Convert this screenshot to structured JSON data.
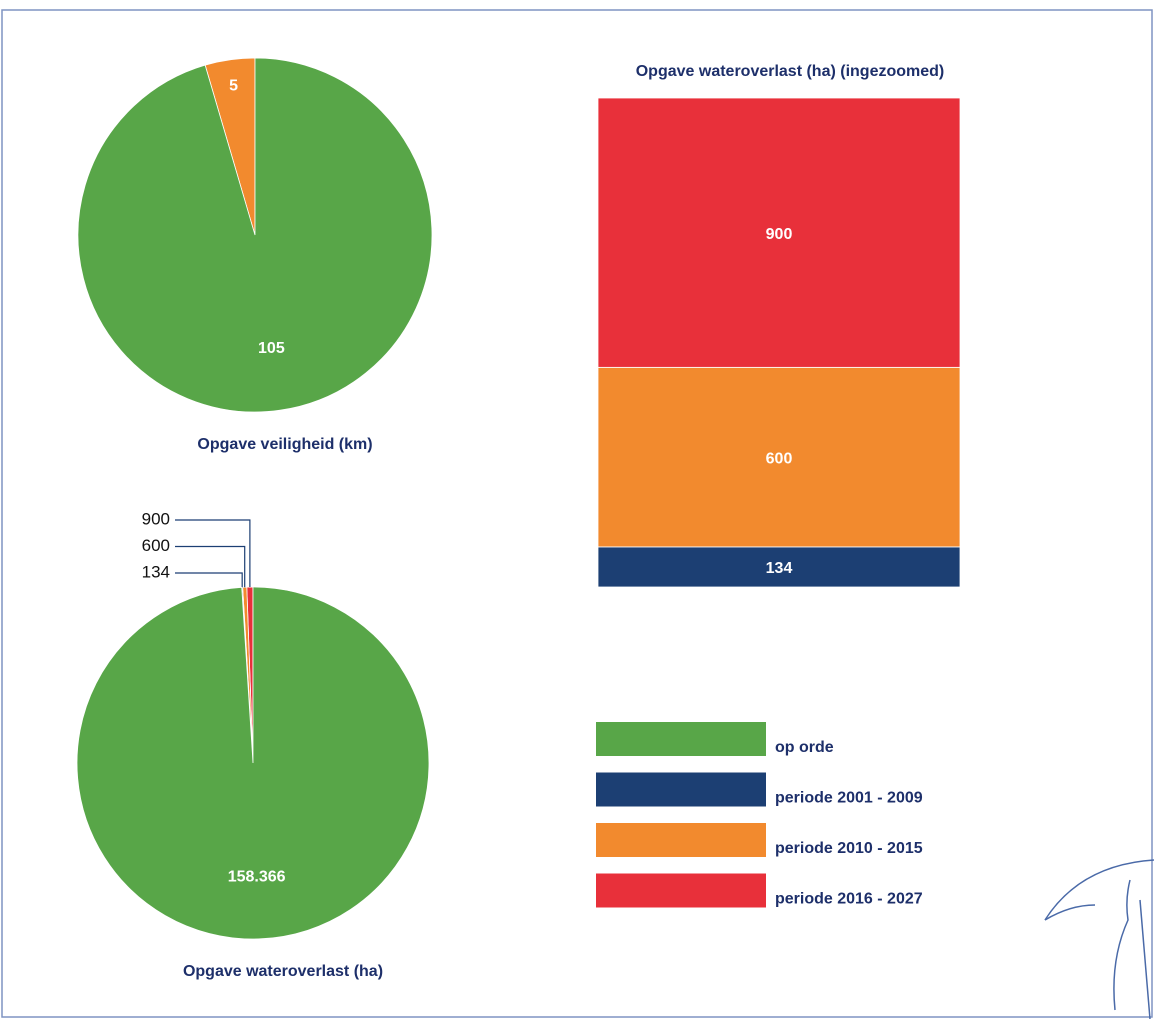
{
  "chart_data": [
    {
      "type": "pie",
      "title": "Opgave veiligheid (km)",
      "values": [
        105,
        5
      ],
      "colors": [
        "#58a648",
        "#f28a2e"
      ]
    },
    {
      "type": "pie",
      "title": "Opgave wateroverlast (ha)",
      "values": [
        158366,
        134,
        600,
        900
      ],
      "value_labels": [
        "158.366",
        "134",
        "600",
        "900"
      ],
      "colors": [
        "#58a648",
        "#1c3f73",
        "#f28a2e",
        "#e8303a"
      ]
    },
    {
      "type": "stacked-bar",
      "title": "Opgave wateroverlast (ha) (ingezoomed)",
      "values": [
        134,
        600,
        900
      ],
      "colors": [
        "#1c3f73",
        "#f28a2e",
        "#e8303a"
      ]
    }
  ],
  "legend": {
    "labels": [
      "op orde",
      "periode 2001 - 2009",
      "periode 2010 - 2015",
      "periode 2016 - 2027"
    ],
    "colors": [
      "#58a648",
      "#1c3f73",
      "#f28a2e",
      "#e8303a"
    ]
  }
}
